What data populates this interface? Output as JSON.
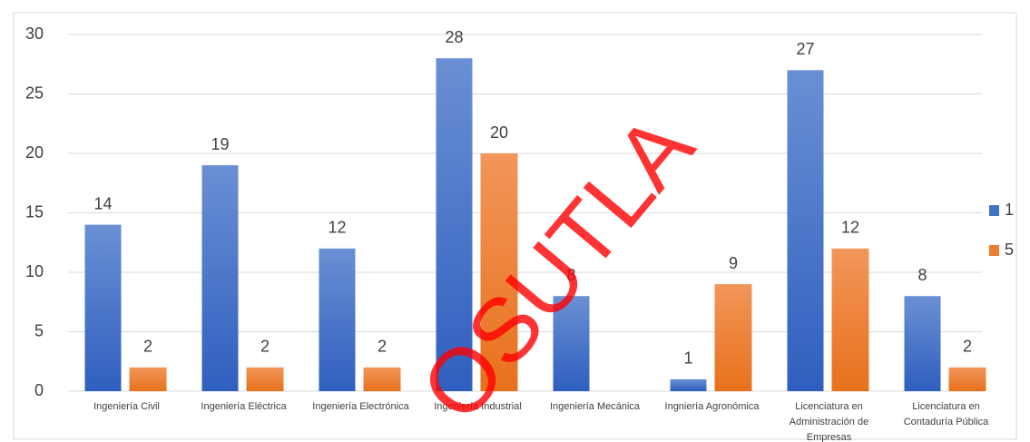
{
  "chart_data": {
    "type": "bar",
    "categories": [
      "Ingeniería Civil",
      "Ingeniería Eléctrica",
      "Ingeniería Electrónica",
      "Ingeniería Industrial",
      "Ingeniería Mecánica",
      "Ingniería Agronómica",
      "Licenciatura en Administración de Empresas",
      "Licenciatura en Contaduría Pública"
    ],
    "series": [
      {
        "name": "1",
        "color": "#4472c4",
        "values": [
          14,
          19,
          12,
          28,
          8,
          1,
          27,
          8
        ]
      },
      {
        "name": "5",
        "color": "#ed7d31",
        "values": [
          2,
          2,
          2,
          20,
          null,
          9,
          12,
          2
        ]
      }
    ],
    "ylim": [
      0,
      30
    ],
    "yticks": [
      0,
      5,
      10,
      15,
      20,
      25,
      30
    ],
    "grid": true,
    "legend": "right",
    "watermark": "OSUTLA"
  }
}
